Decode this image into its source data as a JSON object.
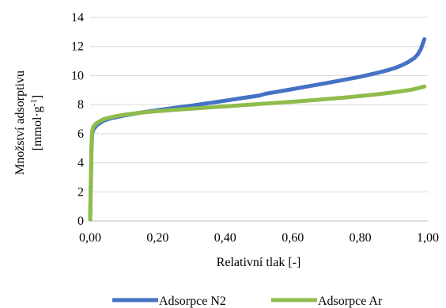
{
  "chart_data": {
    "type": "line",
    "xlabel": "Relativní tlak [-]",
    "ylabel_line1": "Množství adsorptivu",
    "ylabel_line2_prefix": "[mmol·g",
    "ylabel_line2_sup": "-1",
    "ylabel_line2_suffix": "]",
    "xlim": [
      0,
      1
    ],
    "ylim": [
      0,
      14
    ],
    "x_ticks": [
      0,
      0.2,
      0.4,
      0.6,
      0.8,
      1.0
    ],
    "x_tick_labels": [
      "0,00",
      "0,20",
      "0,40",
      "0,60",
      "0,80",
      "1,00"
    ],
    "y_ticks": [
      0,
      2,
      4,
      6,
      8,
      10,
      12,
      14
    ],
    "y_tick_labels": [
      "0",
      "2",
      "4",
      "6",
      "8",
      "10",
      "12",
      "14"
    ],
    "grid": "horizontal",
    "legend_position": "bottom",
    "series": [
      {
        "name": "Adsorpce N2",
        "color": "#4472c4",
        "x": [
          0.0,
          0.002,
          0.004,
          0.006,
          0.01,
          0.02,
          0.04,
          0.06,
          0.08,
          0.1,
          0.15,
          0.2,
          0.25,
          0.3,
          0.35,
          0.4,
          0.45,
          0.5,
          0.52,
          0.55,
          0.6,
          0.65,
          0.7,
          0.75,
          0.8,
          0.85,
          0.88,
          0.9,
          0.92,
          0.94,
          0.96,
          0.97,
          0.98,
          0.985,
          0.99
        ],
        "values": [
          0.1,
          2.5,
          5.0,
          6.0,
          6.3,
          6.6,
          6.9,
          7.05,
          7.15,
          7.25,
          7.45,
          7.62,
          7.78,
          7.93,
          8.1,
          8.27,
          8.45,
          8.62,
          8.75,
          8.87,
          9.07,
          9.28,
          9.48,
          9.7,
          9.92,
          10.18,
          10.36,
          10.5,
          10.68,
          10.9,
          11.2,
          11.45,
          11.85,
          12.2,
          12.5
        ]
      },
      {
        "name": "Adsorpce Ar",
        "color": "#8fbc4a",
        "x": [
          0.0,
          0.002,
          0.004,
          0.006,
          0.01,
          0.02,
          0.04,
          0.06,
          0.08,
          0.1,
          0.15,
          0.2,
          0.25,
          0.3,
          0.35,
          0.4,
          0.45,
          0.5,
          0.55,
          0.6,
          0.65,
          0.7,
          0.75,
          0.8,
          0.85,
          0.9,
          0.95,
          0.97,
          0.99
        ],
        "values": [
          0.1,
          2.5,
          5.2,
          6.2,
          6.5,
          6.75,
          7.0,
          7.12,
          7.22,
          7.3,
          7.45,
          7.55,
          7.64,
          7.72,
          7.8,
          7.88,
          7.96,
          8.04,
          8.12,
          8.2,
          8.29,
          8.38,
          8.48,
          8.59,
          8.71,
          8.85,
          9.02,
          9.12,
          9.25
        ]
      }
    ]
  }
}
